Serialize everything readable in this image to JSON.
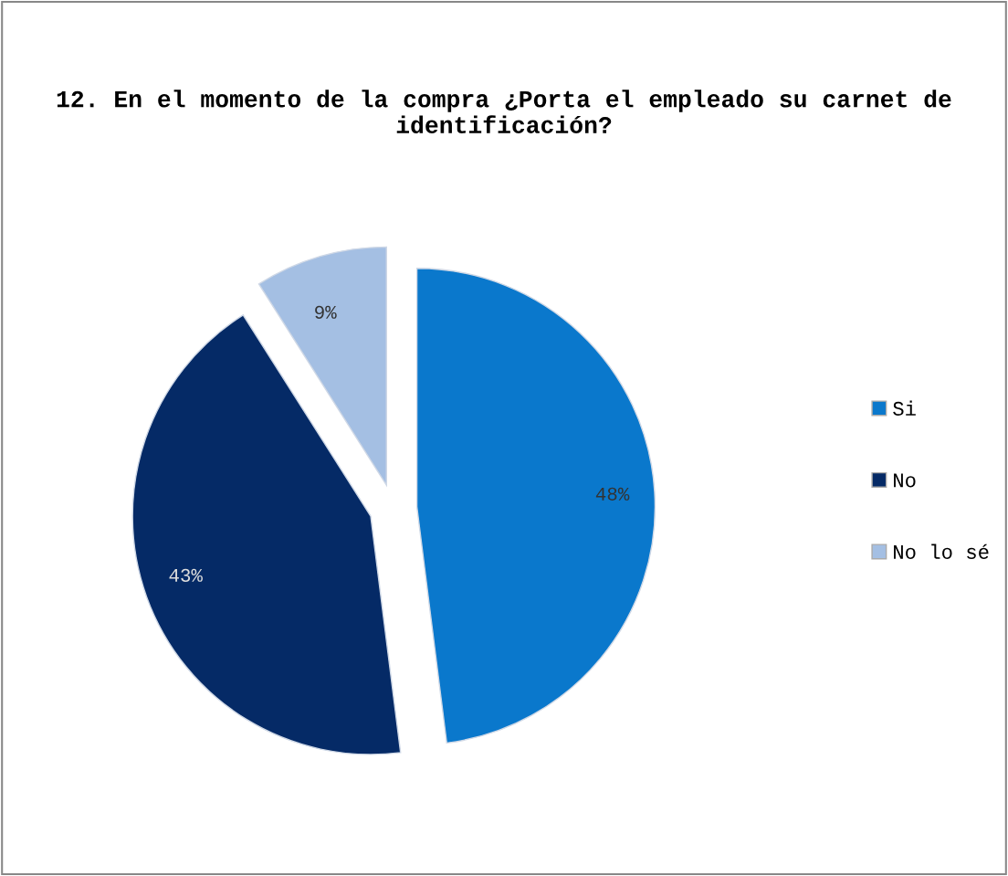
{
  "chart_data": {
    "type": "pie",
    "title": "12. En el momento de la compra ¿Porta el empleado su carnet de identificación?",
    "categories": [
      "Si",
      "No",
      "No lo sé"
    ],
    "values": [
      48,
      43,
      9
    ],
    "colors": [
      "#0a78cc",
      "#052a66",
      "#a4bfe3"
    ],
    "value_labels": [
      "48%",
      "43%",
      "9%"
    ],
    "legend": "right"
  }
}
